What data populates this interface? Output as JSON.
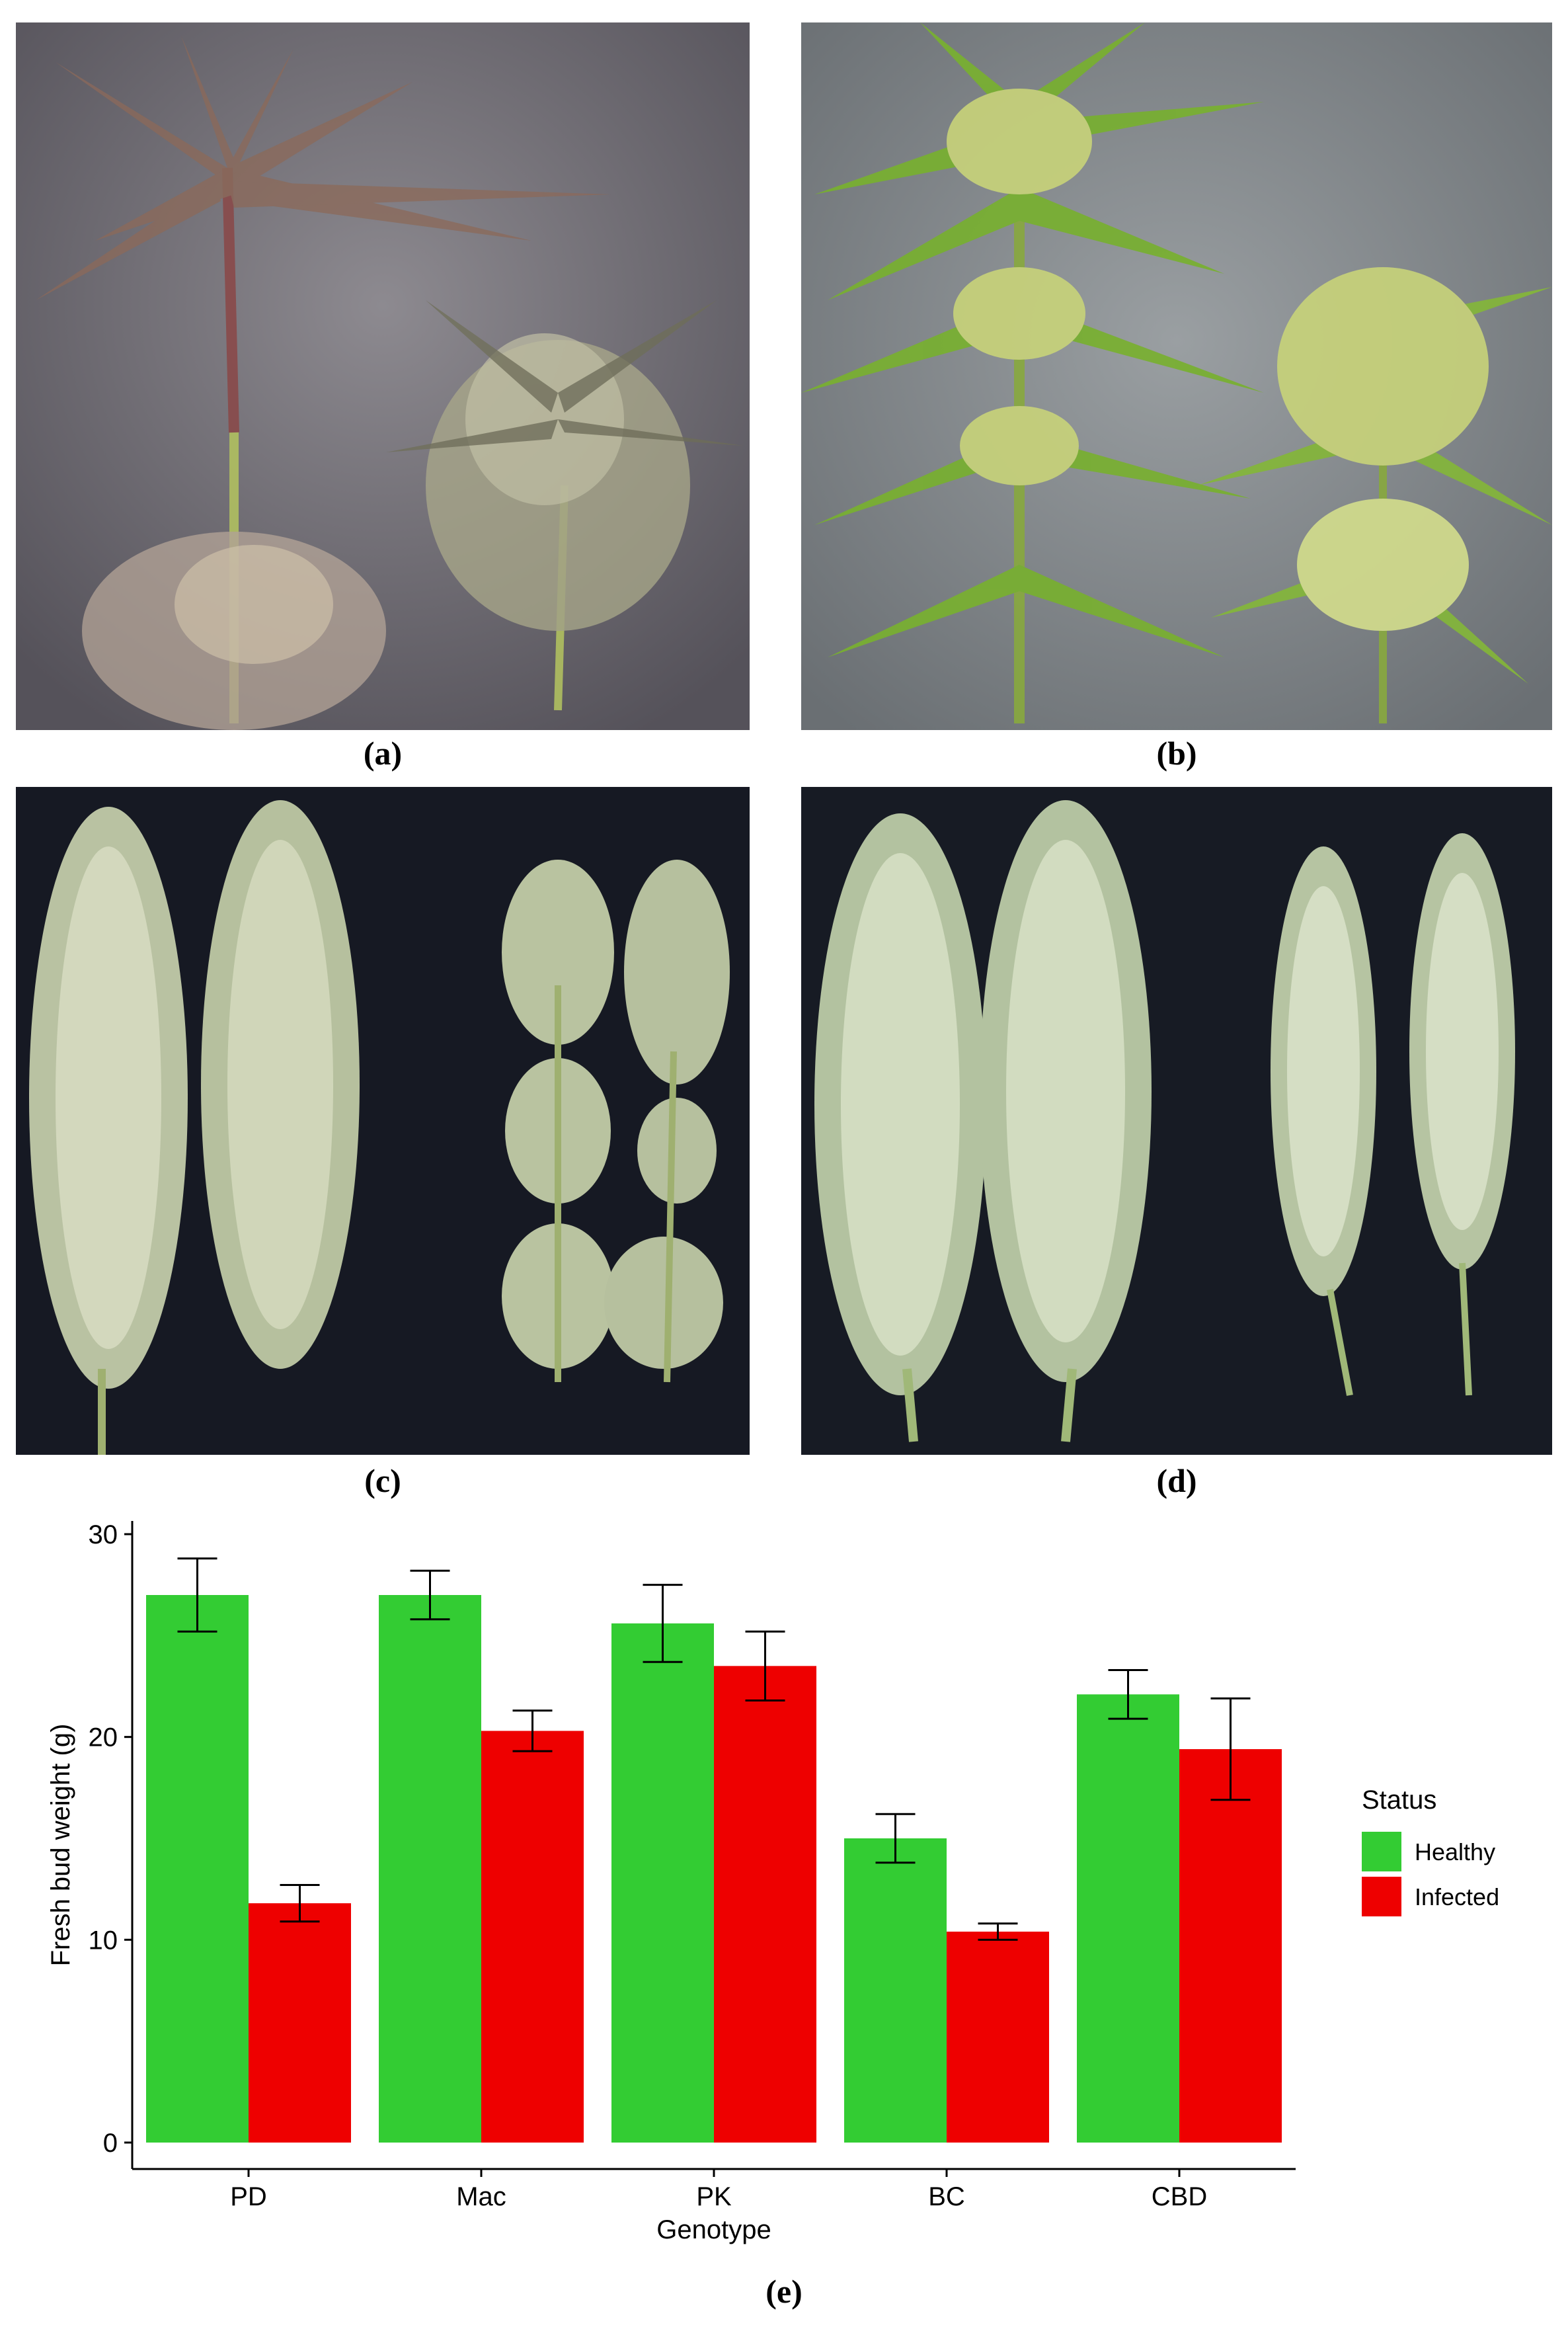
{
  "panels": [
    {
      "label": "(a)"
    },
    {
      "label": "(b)"
    },
    {
      "label": "(c)"
    },
    {
      "label": "(d)"
    },
    {
      "label": "(e)"
    }
  ],
  "chart_data": {
    "type": "bar",
    "categories": [
      "PD",
      "Mac",
      "PK",
      "BC",
      "CBD"
    ],
    "series": [
      {
        "name": "Healthy",
        "color": "#33cc33",
        "values": [
          27.0,
          27.0,
          25.6,
          15.0,
          22.1
        ],
        "errors": [
          1.8,
          1.2,
          1.9,
          1.2,
          1.2
        ]
      },
      {
        "name": "Infected",
        "color": "#ee0000",
        "values": [
          11.8,
          20.3,
          23.5,
          10.4,
          19.4
        ],
        "errors": [
          0.9,
          1.0,
          1.7,
          0.4,
          2.5
        ]
      }
    ],
    "xlabel": "Genotype",
    "ylabel": "Fresh bud weight (g)",
    "ylim": [
      0,
      30
    ],
    "yticks": [
      0,
      10,
      20,
      30
    ],
    "legend": {
      "title": "Status",
      "position": "right"
    },
    "grid": false
  },
  "colors": {
    "healthy": "#33cc33",
    "infected": "#ee0000"
  }
}
